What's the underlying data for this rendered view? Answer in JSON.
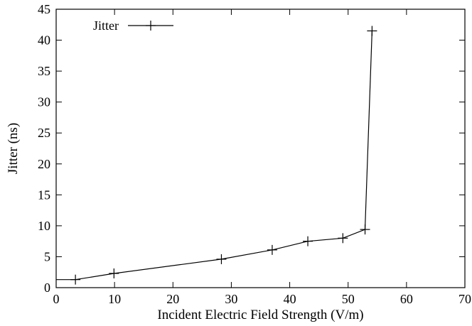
{
  "chart_data": {
    "type": "line",
    "title": "",
    "xlabel": "Incident Electric Field Strength (V/m)",
    "ylabel": "Jitter (ns)",
    "xlim": [
      0,
      70
    ],
    "ylim": [
      0,
      45
    ],
    "xticks": [
      0,
      10,
      20,
      30,
      40,
      50,
      60,
      70
    ],
    "yticks": [
      0,
      5,
      10,
      15,
      20,
      25,
      30,
      35,
      40,
      45
    ],
    "xtick_labels": [
      "0",
      "10",
      "20",
      "30",
      "40",
      "50",
      "60",
      "70"
    ],
    "ytick_labels": [
      "0",
      "5",
      "10",
      "15",
      "20",
      "25",
      "30",
      "35",
      "40",
      "45"
    ],
    "grid": false,
    "legend_position": "top-left",
    "series": [
      {
        "name": "Jitter",
        "marker": "plus",
        "color": "#000000",
        "x": [
          0,
          3.3,
          9.9,
          28.3,
          37.0,
          43.1,
          49.1,
          52.9,
          54.1
        ],
        "y": [
          1.3,
          1.3,
          2.3,
          4.6,
          6.1,
          7.5,
          8.0,
          9.4,
          41.5
        ]
      }
    ]
  }
}
